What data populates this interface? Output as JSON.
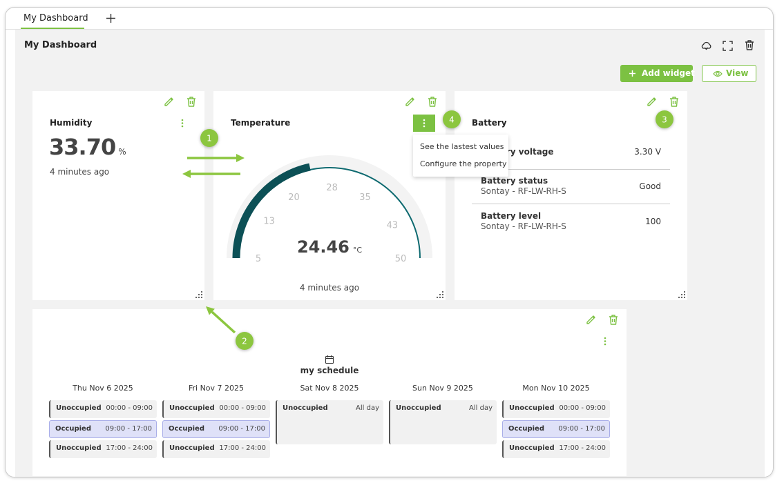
{
  "tab": {
    "label": "My Dashboard"
  },
  "header": {
    "title": "My Dashboard",
    "add_button": "Add widget",
    "view_button": "View"
  },
  "humidity": {
    "title": "Humidity",
    "value": "33.70",
    "unit": "%",
    "updated": "4 minutes ago"
  },
  "temperature": {
    "title": "Temperature",
    "value": 24.46,
    "unit": "°C",
    "updated": "4 minutes ago",
    "gauge_ticks": [
      5,
      13,
      20,
      28,
      35,
      43,
      50
    ],
    "menu": [
      "See the lastest values",
      "Configure the property"
    ]
  },
  "battery": {
    "title": "Battery",
    "rows": [
      {
        "label": "Battery voltage",
        "value": "3.30 V"
      },
      {
        "label": "Battery status",
        "source": "Sontay - RF-LW-RH-S",
        "value": "Good"
      },
      {
        "label": "Battery level",
        "source": "Sontay - RF-LW-RH-S",
        "value": "100"
      }
    ]
  },
  "schedule": {
    "title": "my schedule",
    "days": [
      {
        "date": "Thu Nov 6 2025",
        "slots": [
          {
            "state": "Unoccupied",
            "time": "00:00 - 09:00",
            "color": "#f1f1f1",
            "border": "#555555"
          },
          {
            "state": "Occupied",
            "time": "09:00 - 17:00",
            "color": "#dfe1f8",
            "border": "#a9aee8"
          },
          {
            "state": "Unoccupied",
            "time": "17:00 - 24:00",
            "color": "#f1f1f1",
            "border": "#555555"
          }
        ]
      },
      {
        "date": "Fri Nov 7 2025",
        "slots": [
          {
            "state": "Unoccupied",
            "time": "00:00 - 09:00",
            "color": "#f1f1f1",
            "border": "#555555"
          },
          {
            "state": "Occupied",
            "time": "09:00 - 17:00",
            "color": "#dfe1f8",
            "border": "#a9aee8"
          },
          {
            "state": "Unoccupied",
            "time": "17:00 - 24:00",
            "color": "#f1f1f1",
            "border": "#555555"
          }
        ]
      },
      {
        "date": "Sat Nov 8 2025",
        "slots": [
          {
            "state": "Unoccupied",
            "time": "All day",
            "color": "#f1f1f1",
            "border": "#555555"
          }
        ]
      },
      {
        "date": "Sun Nov 9 2025",
        "slots": [
          {
            "state": "Unoccupied",
            "time": "All day",
            "color": "#f1f1f1",
            "border": "#555555"
          }
        ]
      },
      {
        "date": "Mon Nov 10 2025",
        "slots": [
          {
            "state": "Unoccupied",
            "time": "00:00 - 09:00",
            "color": "#f1f1f1",
            "border": "#555555"
          },
          {
            "state": "Occupied",
            "time": "09:00 - 17:00",
            "color": "#dfe1f8",
            "border": "#a9aee8"
          },
          {
            "state": "Unoccupied",
            "time": "17:00 - 24:00",
            "color": "#f1f1f1",
            "border": "#555555"
          }
        ]
      }
    ]
  },
  "callouts": [
    "1",
    "2",
    "3",
    "4"
  ]
}
